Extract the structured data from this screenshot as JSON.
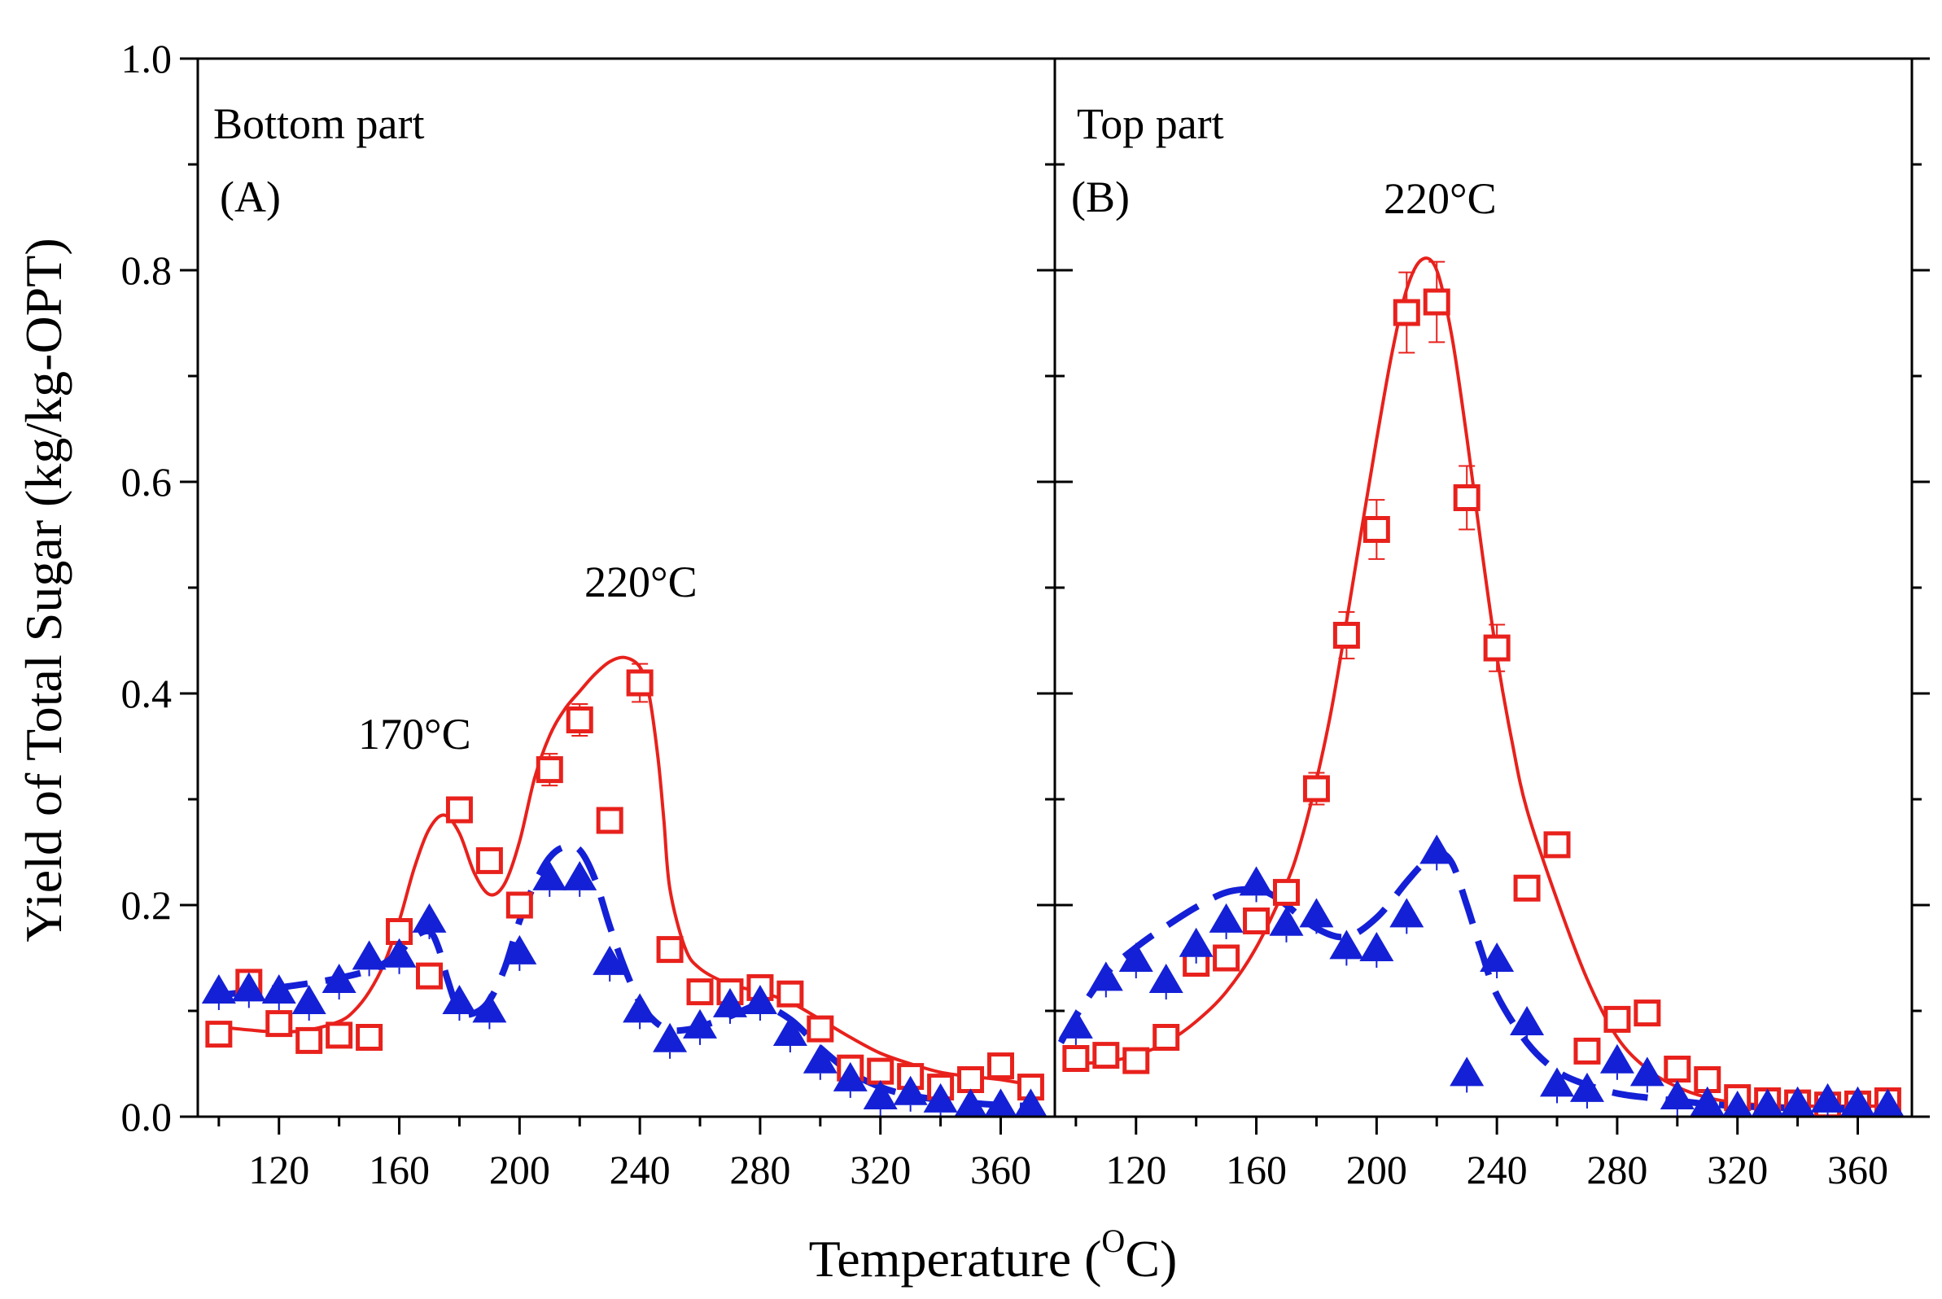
{
  "colors": {
    "red": "#e8211c",
    "blue": "#1420d6",
    "axis": "#000000"
  },
  "figure": {
    "xlabel_main": "Temperature (",
    "xlabel_sup": "O",
    "xlabel_end": "C)",
    "ylabel": "Yield of Total Sugar (kg/kg-OPT)"
  },
  "chart_data": [
    {
      "type": "scatter",
      "panel_title": "Bottom part",
      "panel_id": "(A)",
      "annotations": [
        {
          "text": "170°C",
          "x": 163,
          "y": 0.36
        },
        {
          "text": "220°C",
          "x": 228,
          "y": 0.49
        }
      ],
      "xlim": [
        93,
        378
      ],
      "ylim": [
        0,
        1.0
      ],
      "xticks": [
        "120",
        "160",
        "200",
        "240",
        "280",
        "320",
        "360"
      ],
      "xtick_values": [
        120,
        160,
        200,
        240,
        280,
        320,
        360
      ],
      "yticks": [
        "0.0",
        "0.2",
        "0.4",
        "0.6",
        "0.8",
        "1.0"
      ],
      "ytick_values": [
        0,
        0.2,
        0.4,
        0.6,
        0.8,
        1.0
      ],
      "series": [
        {
          "name": "red squares",
          "marker": "square",
          "x": [
            100,
            110,
            120,
            130,
            140,
            150,
            160,
            170,
            180,
            190,
            200,
            210,
            220,
            230,
            240,
            250,
            260,
            270,
            280,
            290,
            300,
            310,
            320,
            330,
            340,
            350,
            360,
            370
          ],
          "y": [
            0.078,
            0.127,
            0.088,
            0.072,
            0.077,
            0.075,
            0.175,
            0.133,
            0.29,
            0.242,
            0.2,
            0.328,
            0.375,
            0.28,
            0.41,
            0.158,
            0.118,
            0.118,
            0.122,
            0.116,
            0.083,
            0.046,
            0.043,
            0.038,
            0.028,
            0.035,
            0.048,
            0.028
          ],
          "err": [
            0.008,
            0.008,
            0.008,
            0.008,
            0.008,
            0.008,
            0.008,
            0.008,
            0.01,
            0.01,
            0.01,
            0.015,
            0.015,
            0.01,
            0.018,
            0.01,
            0.008,
            0.008,
            0.008,
            0.008,
            0.008,
            0.008,
            0.008,
            0.008,
            0.008,
            0.008,
            0.008,
            0.008
          ]
        },
        {
          "name": "blue triangles",
          "marker": "triangle",
          "x": [
            100,
            110,
            120,
            130,
            140,
            150,
            160,
            170,
            180,
            190,
            200,
            210,
            220,
            230,
            240,
            250,
            260,
            270,
            280,
            290,
            300,
            310,
            320,
            330,
            340,
            350,
            360,
            370
          ],
          "y": [
            0.118,
            0.12,
            0.118,
            0.108,
            0.128,
            0.15,
            0.152,
            0.185,
            0.108,
            0.1,
            0.155,
            0.225,
            0.225,
            0.145,
            0.1,
            0.072,
            0.085,
            0.105,
            0.108,
            0.078,
            0.052,
            0.035,
            0.018,
            0.022,
            0.015,
            0.01,
            0.01,
            0.01
          ]
        },
        {
          "name": "red fit",
          "line": "solid",
          "x": [
            100,
            110,
            120,
            130,
            140,
            145,
            150,
            155,
            160,
            165,
            170,
            175,
            180,
            185,
            190,
            195,
            200,
            205,
            210,
            215,
            220,
            225,
            230,
            235,
            240,
            243,
            246,
            248,
            250,
            255,
            260,
            270,
            280,
            290,
            300,
            310,
            320,
            330,
            340,
            350,
            360,
            370
          ],
          "y": [
            0.085,
            0.082,
            0.08,
            0.082,
            0.09,
            0.1,
            0.118,
            0.145,
            0.185,
            0.235,
            0.272,
            0.285,
            0.268,
            0.23,
            0.21,
            0.22,
            0.26,
            0.32,
            0.36,
            0.385,
            0.402,
            0.418,
            0.43,
            0.434,
            0.425,
            0.4,
            0.34,
            0.28,
            0.215,
            0.16,
            0.14,
            0.125,
            0.118,
            0.108,
            0.092,
            0.075,
            0.06,
            0.05,
            0.042,
            0.038,
            0.035,
            0.03
          ]
        },
        {
          "name": "blue fit",
          "line": "dashed",
          "x": [
            100,
            110,
            120,
            130,
            140,
            150,
            155,
            160,
            165,
            170,
            173,
            176,
            180,
            185,
            190,
            195,
            200,
            205,
            210,
            215,
            220,
            225,
            230,
            235,
            240,
            245,
            250,
            255,
            260,
            270,
            280,
            290,
            300,
            310,
            320,
            330,
            340,
            350,
            360,
            370
          ],
          "y": [
            0.115,
            0.118,
            0.122,
            0.126,
            0.131,
            0.138,
            0.145,
            0.155,
            0.17,
            0.175,
            0.16,
            0.13,
            0.1,
            0.098,
            0.11,
            0.14,
            0.185,
            0.22,
            0.245,
            0.255,
            0.252,
            0.225,
            0.18,
            0.14,
            0.108,
            0.09,
            0.082,
            0.082,
            0.085,
            0.095,
            0.105,
            0.092,
            0.065,
            0.042,
            0.028,
            0.02,
            0.016,
            0.013,
            0.011,
            0.01
          ]
        }
      ]
    },
    {
      "type": "scatter",
      "panel_title": "Top part",
      "panel_id": "(B)",
      "annotations": [
        {
          "text": "220°C",
          "x": 214,
          "y": 0.86
        }
      ],
      "xlim": [
        93,
        378
      ],
      "ylim": [
        0,
        1.0
      ],
      "xticks": [
        "120",
        "160",
        "200",
        "240",
        "280",
        "320",
        "360"
      ],
      "xtick_values": [
        120,
        160,
        200,
        240,
        280,
        320,
        360
      ],
      "series": [
        {
          "name": "red squares",
          "marker": "square",
          "x": [
            100,
            110,
            120,
            130,
            140,
            150,
            160,
            170,
            180,
            190,
            200,
            210,
            220,
            230,
            240,
            250,
            260,
            270,
            280,
            290,
            300,
            310,
            320,
            330,
            340,
            350,
            360,
            370
          ],
          "y": [
            0.055,
            0.058,
            0.053,
            0.075,
            0.145,
            0.15,
            0.185,
            0.212,
            0.31,
            0.455,
            0.555,
            0.76,
            0.77,
            0.585,
            0.443,
            0.216,
            0.257,
            0.062,
            0.092,
            0.098,
            0.045,
            0.035,
            0.018,
            0.015,
            0.013,
            0.011,
            0.012,
            0.015
          ],
          "err": [
            0.008,
            0.008,
            0.008,
            0.008,
            0.008,
            0.008,
            0.008,
            0.01,
            0.015,
            0.022,
            0.028,
            0.038,
            0.038,
            0.03,
            0.022,
            0.01,
            0.01,
            0.008,
            0.008,
            0.008,
            0.008,
            0.008,
            0.008,
            0.008,
            0.008,
            0.008,
            0.008,
            0.008
          ]
        },
        {
          "name": "blue triangles",
          "marker": "triangle",
          "x": [
            100,
            110,
            120,
            130,
            140,
            150,
            160,
            170,
            180,
            190,
            200,
            210,
            220,
            230,
            240,
            250,
            260,
            270,
            280,
            290,
            300,
            310,
            320,
            330,
            340,
            350,
            360,
            370
          ],
          "y": [
            0.085,
            0.13,
            0.148,
            0.128,
            0.162,
            0.185,
            0.22,
            0.182,
            0.19,
            0.16,
            0.158,
            0.19,
            0.25,
            0.04,
            0.148,
            0.088,
            0.03,
            0.025,
            0.052,
            0.04,
            0.018,
            0.012,
            0.008,
            0.01,
            0.012,
            0.015,
            0.012,
            0.01
          ]
        },
        {
          "name": "red fit",
          "line": "solid",
          "x": [
            100,
            110,
            120,
            130,
            140,
            150,
            160,
            170,
            175,
            180,
            185,
            190,
            195,
            200,
            205,
            210,
            215,
            220,
            225,
            230,
            235,
            240,
            245,
            250,
            260,
            270,
            280,
            290,
            300,
            310,
            320,
            330,
            340,
            350,
            360,
            370
          ],
          "y": [
            0.05,
            0.052,
            0.058,
            0.07,
            0.09,
            0.118,
            0.16,
            0.22,
            0.262,
            0.318,
            0.385,
            0.468,
            0.555,
            0.64,
            0.72,
            0.782,
            0.81,
            0.8,
            0.738,
            0.642,
            0.535,
            0.435,
            0.355,
            0.29,
            0.205,
            0.13,
            0.075,
            0.045,
            0.028,
            0.018,
            0.013,
            0.011,
            0.01,
            0.01,
            0.01,
            0.01
          ]
        },
        {
          "name": "blue fit",
          "line": "dashed",
          "x": [
            95,
            100,
            110,
            120,
            130,
            140,
            150,
            160,
            165,
            170,
            180,
            190,
            200,
            210,
            215,
            220,
            225,
            230,
            235,
            240,
            250,
            260,
            270,
            280,
            290,
            300,
            310,
            320,
            330,
            340,
            350,
            360,
            370
          ],
          "y": [
            0.07,
            0.095,
            0.135,
            0.16,
            0.18,
            0.198,
            0.212,
            0.215,
            0.21,
            0.2,
            0.178,
            0.17,
            0.188,
            0.222,
            0.238,
            0.25,
            0.24,
            0.2,
            0.155,
            0.115,
            0.07,
            0.043,
            0.03,
            0.022,
            0.018,
            0.015,
            0.012,
            0.01,
            0.009,
            0.008,
            0.008,
            0.008,
            0.008
          ]
        }
      ]
    }
  ]
}
